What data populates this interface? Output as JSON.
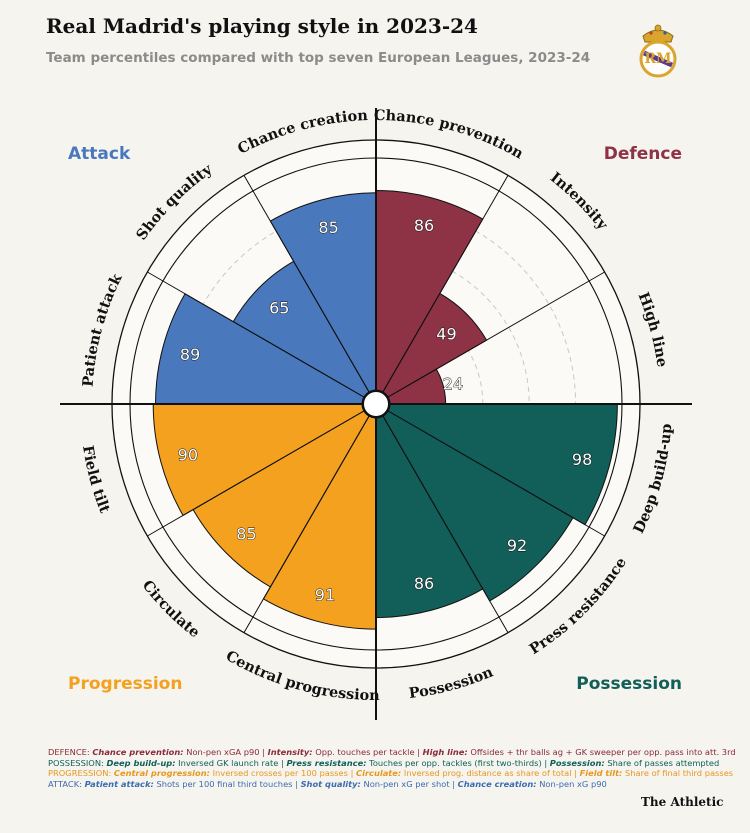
{
  "title": "Real Madrid's playing style in 2023-24",
  "subtitle": "Team percentiles compared with top seven European Leagues, 2023-24",
  "brand": "The Athletic",
  "colors": {
    "attack": "#4a78bd",
    "defence": "#8e3245",
    "possession": "#125e59",
    "progression": "#f4a11f"
  },
  "chart_data": {
    "type": "polar-bar",
    "groups": [
      {
        "key": "attack",
        "label": "Attack"
      },
      {
        "key": "defence",
        "label": "Defence"
      },
      {
        "key": "possession",
        "label": "Possession"
      },
      {
        "key": "progression",
        "label": "Progression"
      }
    ],
    "metrics": [
      {
        "label": "Chance prevention",
        "value": 86,
        "group": "defence"
      },
      {
        "label": "Intensity",
        "value": 49,
        "group": "defence"
      },
      {
        "label": "High line",
        "value": 24,
        "group": "defence"
      },
      {
        "label": "Deep build-up",
        "value": 98,
        "group": "possession"
      },
      {
        "label": "Press resistance",
        "value": 92,
        "group": "possession"
      },
      {
        "label": "Possession",
        "value": 86,
        "group": "possession"
      },
      {
        "label": "Central progression",
        "value": 91,
        "group": "progression"
      },
      {
        "label": "Circulate",
        "value": 85,
        "group": "progression"
      },
      {
        "label": "Field tilt",
        "value": 90,
        "group": "progression"
      },
      {
        "label": "Patient attack",
        "value": 89,
        "group": "attack"
      },
      {
        "label": "Shot quality",
        "value": 65,
        "group": "attack"
      },
      {
        "label": "Chance creation",
        "value": 85,
        "group": "attack"
      }
    ],
    "rmax": 100
  },
  "footnote": {
    "defence": {
      "group": "DEFENCE:",
      "items": [
        {
          "name": "Chance prevention:",
          "desc": "Non-pen xGA p90"
        },
        {
          "name": "Intensity:",
          "desc": "Opp. touches per tackle"
        },
        {
          "name": "High line:",
          "desc": "Offsides + thr balls ag + GK sweeper per opp. pass into att. 3rd"
        }
      ]
    },
    "possession": {
      "group": "POSSESSION:",
      "items": [
        {
          "name": "Deep build-up:",
          "desc": "Inversed GK launch rate"
        },
        {
          "name": "Press resistance:",
          "desc": "Touches per opp. tackles (first two-thirds)"
        },
        {
          "name": "Possession:",
          "desc": "Share of passes attempted"
        }
      ]
    },
    "progression": {
      "group": "PROGRESSION:",
      "items": [
        {
          "name": "Central progression:",
          "desc": "Inversed crosses per 100 passes"
        },
        {
          "name": "Circulate:",
          "desc": "Inversed prog. distance as share of total"
        },
        {
          "name": "Field tilt:",
          "desc": "Share of final third passes"
        }
      ]
    },
    "attack": {
      "group": "ATTACK:",
      "items": [
        {
          "name": "Patient attack:",
          "desc": "Shots per 100 final third touches"
        },
        {
          "name": "Shot quality:",
          "desc": "Non-pen xG per shot"
        },
        {
          "name": "Chance creation:",
          "desc": "Non-pen xG p90"
        }
      ]
    }
  }
}
